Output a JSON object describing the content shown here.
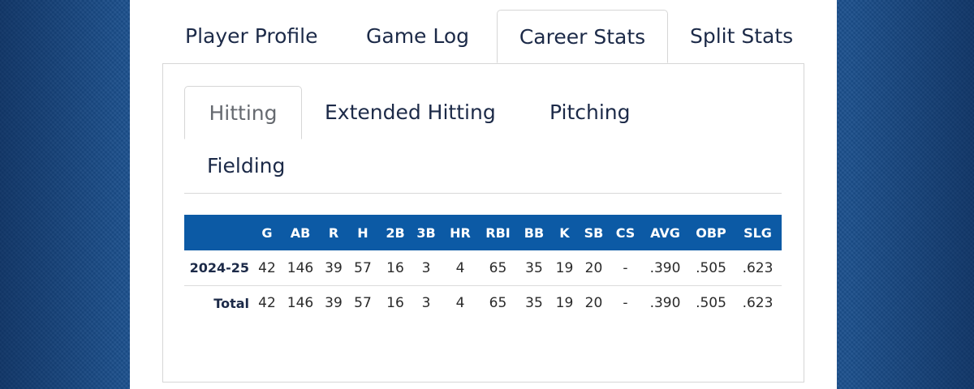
{
  "main_tabs": [
    {
      "label": "Player Profile"
    },
    {
      "label": "Game Log"
    },
    {
      "label": "Career Stats"
    },
    {
      "label": "Split Stats"
    }
  ],
  "active_main_tab": "Career Stats",
  "sub_tabs": [
    {
      "label": "Hitting"
    },
    {
      "label": "Extended Hitting"
    },
    {
      "label": "Pitching"
    },
    {
      "label": "Fielding"
    }
  ],
  "active_sub_tab": "Hitting",
  "table": {
    "columns": [
      "",
      "G",
      "AB",
      "R",
      "H",
      "2B",
      "3B",
      "HR",
      "RBI",
      "BB",
      "K",
      "SB",
      "CS",
      "AVG",
      "OBP",
      "SLG"
    ],
    "rows": [
      [
        "2024-25",
        "42",
        "146",
        "39",
        "57",
        "16",
        "3",
        "4",
        "65",
        "35",
        "19",
        "20",
        "-",
        ".390",
        ".505",
        ".623"
      ],
      [
        "Total",
        "42",
        "146",
        "39",
        "57",
        "16",
        "3",
        "4",
        "65",
        "35",
        "19",
        "20",
        "-",
        ".390",
        ".505",
        ".623"
      ]
    ]
  },
  "colors": {
    "page_background": "#1b4f8c",
    "table_header": "#0c5aa5",
    "tab_text": "#1c2a48",
    "active_sub_tab_text": "#666a70"
  }
}
